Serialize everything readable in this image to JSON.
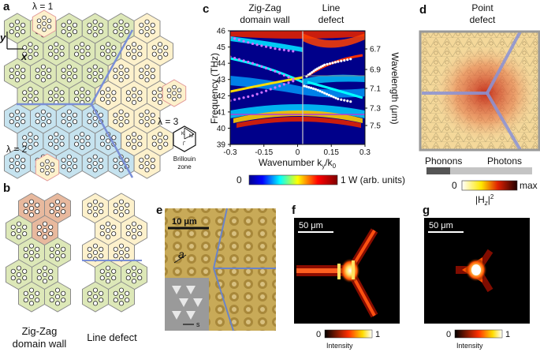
{
  "panels": {
    "a": "a",
    "b": "b",
    "c": "c",
    "d": "d",
    "e": "e",
    "f": "f",
    "g": "g"
  },
  "panel_a": {
    "axis_y": "y",
    "axis_x": "x",
    "lambda1": "λ = 1",
    "lambda2": "λ = 2",
    "lambda3": "λ = 3",
    "bz_k": "K",
    "bz_m": "M",
    "bz_gamma": "Γ",
    "bz_caption_1": "Brillouin",
    "bz_caption_2": "zone"
  },
  "panel_b": {
    "label_zigzag_1": "Zig-Zag",
    "label_zigzag_2": "domain wall",
    "label_line": "Line defect"
  },
  "panel_c": {
    "title_left_1": "Zig-Zag",
    "title_left_2": "domain wall",
    "title_right_1": "Line",
    "title_right_2": "defect",
    "ylabel": "Frequency (THz)",
    "ylabel2": "Wavelength (μm)",
    "xlabel": "Wavenumber k",
    "xlabel_sub": "y",
    "xlabel_tail": "/k",
    "xlabel_sub2": "0",
    "colorbar_min": "0",
    "colorbar_max": "1 W (arb. units)",
    "colors": {
      "purple_line": "#b23bd6",
      "white_dots": "#ffffff"
    }
  },
  "panel_d": {
    "title_1": "Point",
    "title_2": "defect",
    "phonons": "Phonons",
    "photons": "Photons",
    "colorbar_min": "0",
    "colorbar_max": "max",
    "colorbar_label": "|H",
    "colorbar_label_sub": "z",
    "colorbar_label_sup": "2"
  },
  "panel_e": {
    "scalebar": "10 μm",
    "lattice_label": "a",
    "inset_label": "s"
  },
  "panel_f": {
    "scalebar": "50 μm",
    "cb_min": "0",
    "cb_max": "1",
    "cb_label": "Intensity"
  },
  "panel_g": {
    "scalebar": "50 μm",
    "cb_min": "0",
    "cb_max": "1",
    "cb_label": "Intensity"
  },
  "chart_data": {
    "type": "line",
    "title": "",
    "xlabel": "Wavenumber k_y/k_0",
    "ylabel": "Frequency (THz)",
    "ylabel_right": "Wavelength (μm)",
    "x_ticks": [
      "-0.3",
      "-0.15",
      "0",
      "0.15",
      "0.3"
    ],
    "y_ticks": [
      "39",
      "40",
      "41",
      "42",
      "43",
      "44",
      "45",
      "46"
    ],
    "y2_ticks": [
      "6.7",
      "6.9",
      "7.1",
      "7.3",
      "7.5"
    ],
    "xlim": [
      -0.3,
      0.3
    ],
    "ylim": [
      39,
      46
    ],
    "series": [
      {
        "values": [
          [
            -0.3,
            45.6
          ],
          [
            -0.2,
            45.2
          ],
          [
            -0.1,
            44.9
          ],
          [
            0,
            44.7
          ]
        ]
      },
      {
        "values": [
          [
            -0.3,
            44.4
          ],
          [
            -0.2,
            44.0
          ],
          [
            -0.1,
            43.5
          ],
          [
            0,
            42.9
          ]
        ]
      },
      {
        "values": [
          [
            -0.3,
            41.7
          ],
          [
            -0.2,
            42.0
          ],
          [
            -0.1,
            42.5
          ],
          [
            0,
            43.0
          ]
        ]
      },
      {
        "values": [
          [
            0.04,
            43.2
          ],
          [
            0.08,
            43.6
          ],
          [
            0.12,
            43.9
          ],
          [
            0.18,
            44.1
          ],
          [
            0.25,
            44.3
          ]
        ]
      },
      {
        "values": [
          [
            0.03,
            42.6
          ],
          [
            0.08,
            42.4
          ],
          [
            0.13,
            42.1
          ],
          [
            0.18,
            41.8
          ],
          [
            0.25,
            41.6
          ]
        ]
      }
    ]
  }
}
